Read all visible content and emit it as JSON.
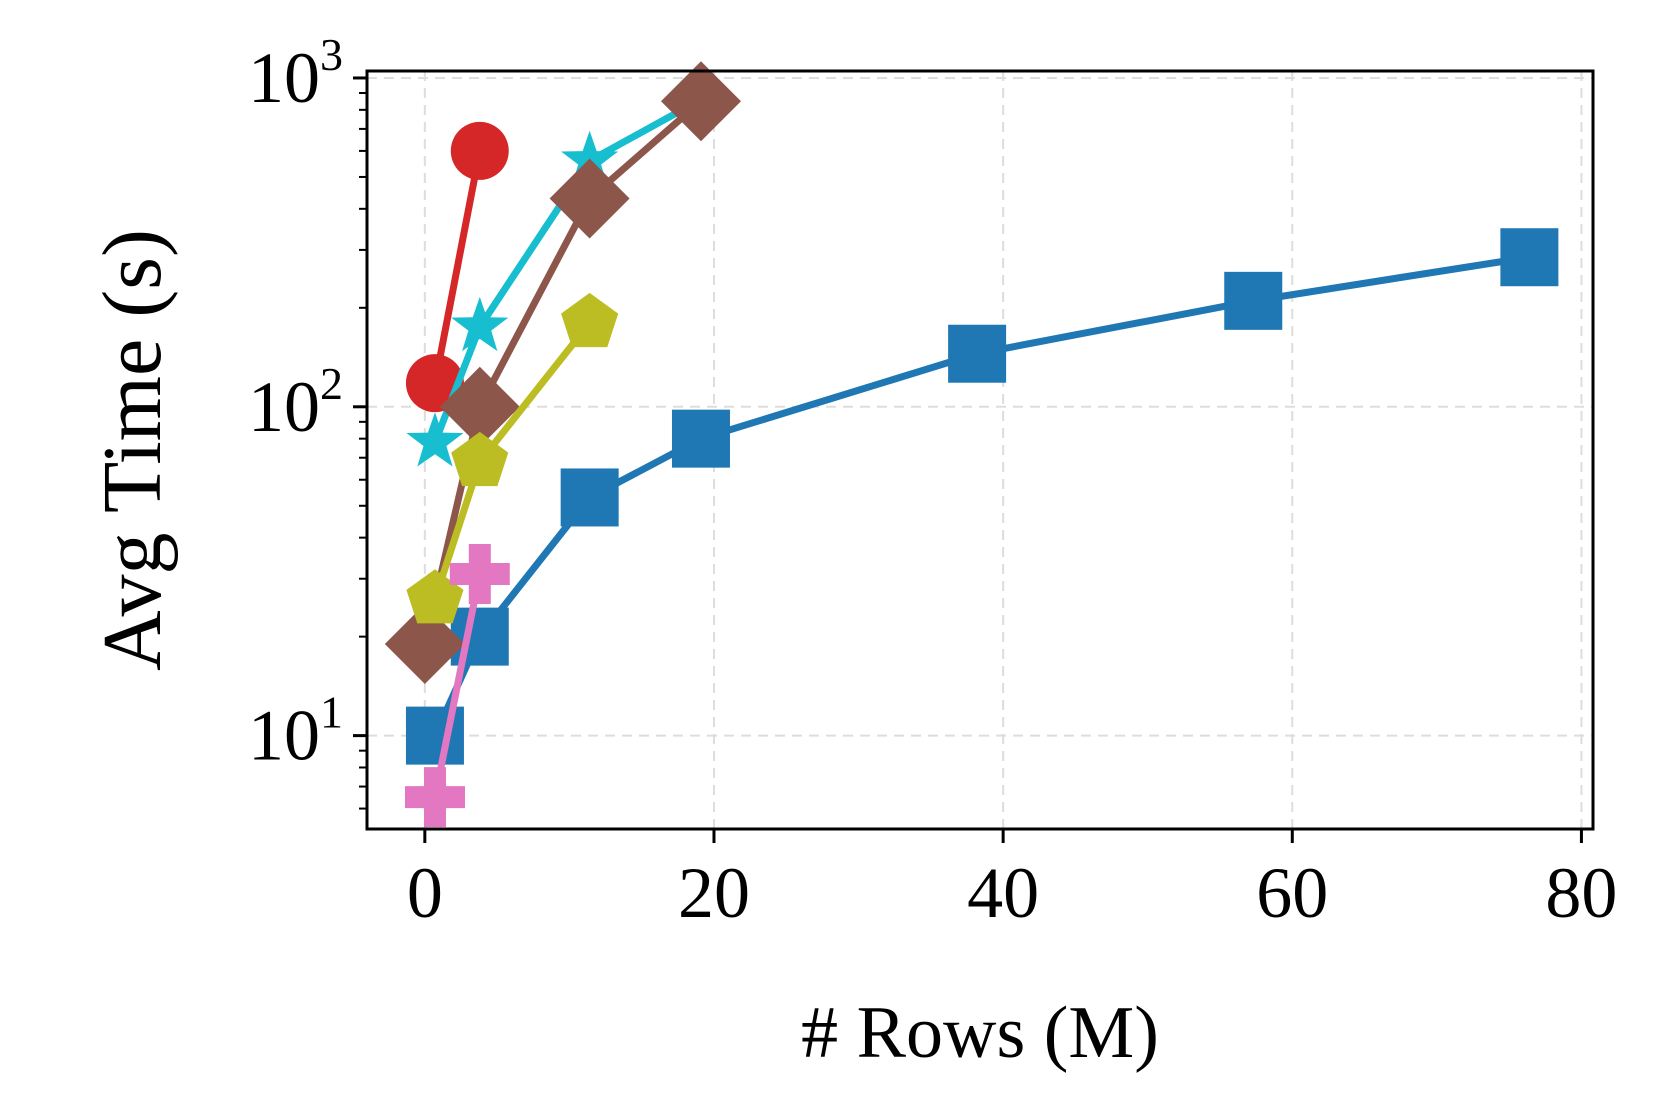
{
  "chart_data": {
    "type": "line",
    "title": "",
    "xlabel": "# Rows (M)",
    "ylabel": "Avg Time (s)",
    "xlim": [
      -4,
      80.8
    ],
    "ylim": [
      5.2,
      1050
    ],
    "yscale": "log",
    "xticks": [
      0,
      20,
      40,
      60,
      80
    ],
    "yticks": [
      10,
      100,
      1000
    ],
    "yticklabels": [
      {
        "base": "10",
        "exp": "1"
      },
      {
        "base": "10",
        "exp": "2"
      },
      {
        "base": "10",
        "exp": "3"
      }
    ],
    "grid": true,
    "legend": false,
    "series": [
      {
        "color": "#1f77b4",
        "marker": "square",
        "x": [
          0.7,
          3.8,
          11.4,
          19.1,
          38.2,
          57.3,
          76.4
        ],
        "y": [
          10,
          20,
          53,
          80,
          145,
          210,
          285
        ]
      },
      {
        "color": "#d62728",
        "marker": "circle",
        "x": [
          0.7,
          3.8
        ],
        "y": [
          118,
          600
        ]
      },
      {
        "color": "#17becf",
        "marker": "star",
        "x": [
          0.7,
          3.8,
          11.4,
          19.1
        ],
        "y": [
          78,
          175,
          560,
          860
        ]
      },
      {
        "color": "#8c564b",
        "marker": "diamond",
        "x": [
          0,
          3.8,
          11.4,
          19.1
        ],
        "y": [
          19,
          100,
          430,
          850
        ]
      },
      {
        "color": "#bcbd22",
        "marker": "pentagon",
        "x": [
          0.7,
          3.8,
          11.4
        ],
        "y": [
          26,
          68,
          180
        ]
      },
      {
        "color": "#e377c2",
        "marker": "plus",
        "x": [
          0.7,
          3.8
        ],
        "y": [
          6.5,
          31
        ]
      }
    ]
  }
}
